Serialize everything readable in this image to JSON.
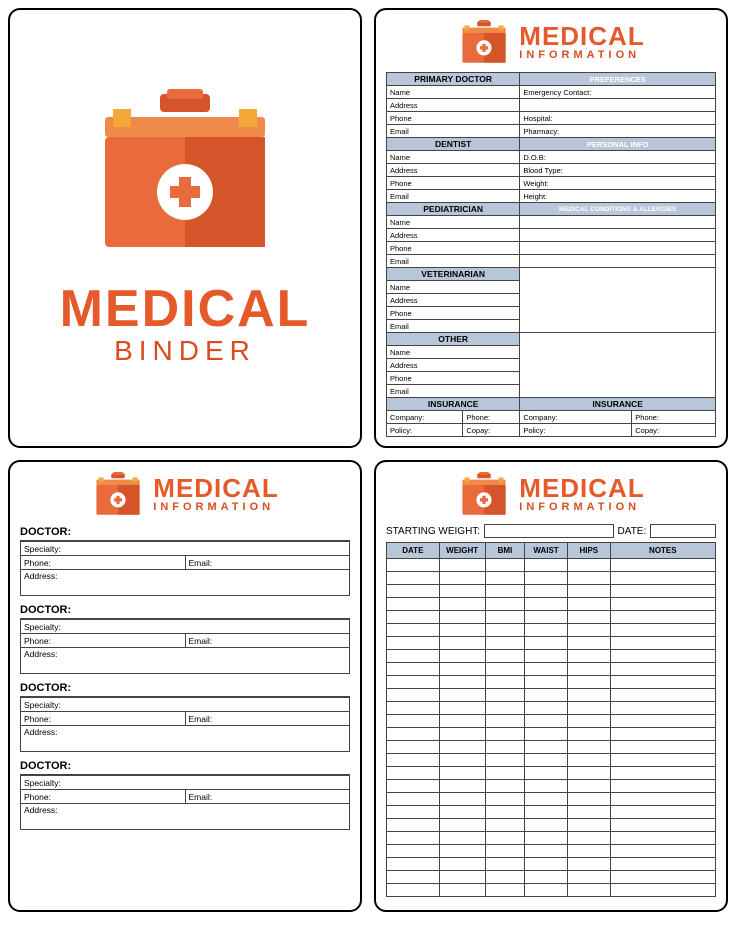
{
  "colors": {
    "accent": "#e55a2b",
    "accent2": "#d84e1f",
    "header_bg": "#b8c6d9",
    "kit_body": "#e96a3a",
    "kit_dark": "#d5542a",
    "kit_top": "#f08a4a",
    "kit_yellow": "#f4a838"
  },
  "cover": {
    "title": "MEDICAL",
    "subtitle": "BINDER"
  },
  "hdr": {
    "title": "MEDICAL",
    "subtitle": "INFORMATION"
  },
  "info": {
    "left_sections": [
      {
        "title": "PRIMARY DOCTOR",
        "rows": [
          "Name",
          "Address",
          "Phone",
          "Email"
        ]
      },
      {
        "title": "DENTIST",
        "rows": [
          "Name",
          "Address",
          "Phone",
          "Email"
        ]
      },
      {
        "title": "PEDIATRICIAN",
        "rows": [
          "Name",
          "Address",
          "Phone",
          "Email"
        ]
      },
      {
        "title": "VETERINARIAN",
        "rows": [
          "Name",
          "Address",
          "Phone",
          "Email"
        ]
      },
      {
        "title": "OTHER",
        "rows": [
          "Name",
          "Address",
          "Phone",
          "Email"
        ]
      }
    ],
    "right_top": {
      "title": "PREFERENCES",
      "rows": [
        "Emergency Contact:",
        "",
        "Hospital:",
        "Pharmacy:"
      ]
    },
    "right_mid": {
      "title": "PERSONAL INFO",
      "rows": [
        "D.O.B:",
        "Blood Type:",
        "Weight:",
        "Height:"
      ]
    },
    "right_bottom": {
      "title": "MEDICAL CONDITIONS & ALLERGIES"
    },
    "insurance": {
      "title": "INSURANCE",
      "cells": [
        "Company:",
        "Phone:",
        "Policy:",
        "Copay:"
      ]
    }
  },
  "doctors": {
    "title": "DOCTOR:",
    "fields": {
      "specialty": "Specialty:",
      "phone": "Phone:",
      "email": "Email:",
      "address": "Address:"
    },
    "count": 4
  },
  "weight": {
    "start_label": "STARTING WEIGHT:",
    "date_label": "DATE:",
    "cols": [
      "DATE",
      "WEIGHT",
      "BMI",
      "WAIST",
      "HIPS",
      "NOTES"
    ],
    "rows": 26
  }
}
